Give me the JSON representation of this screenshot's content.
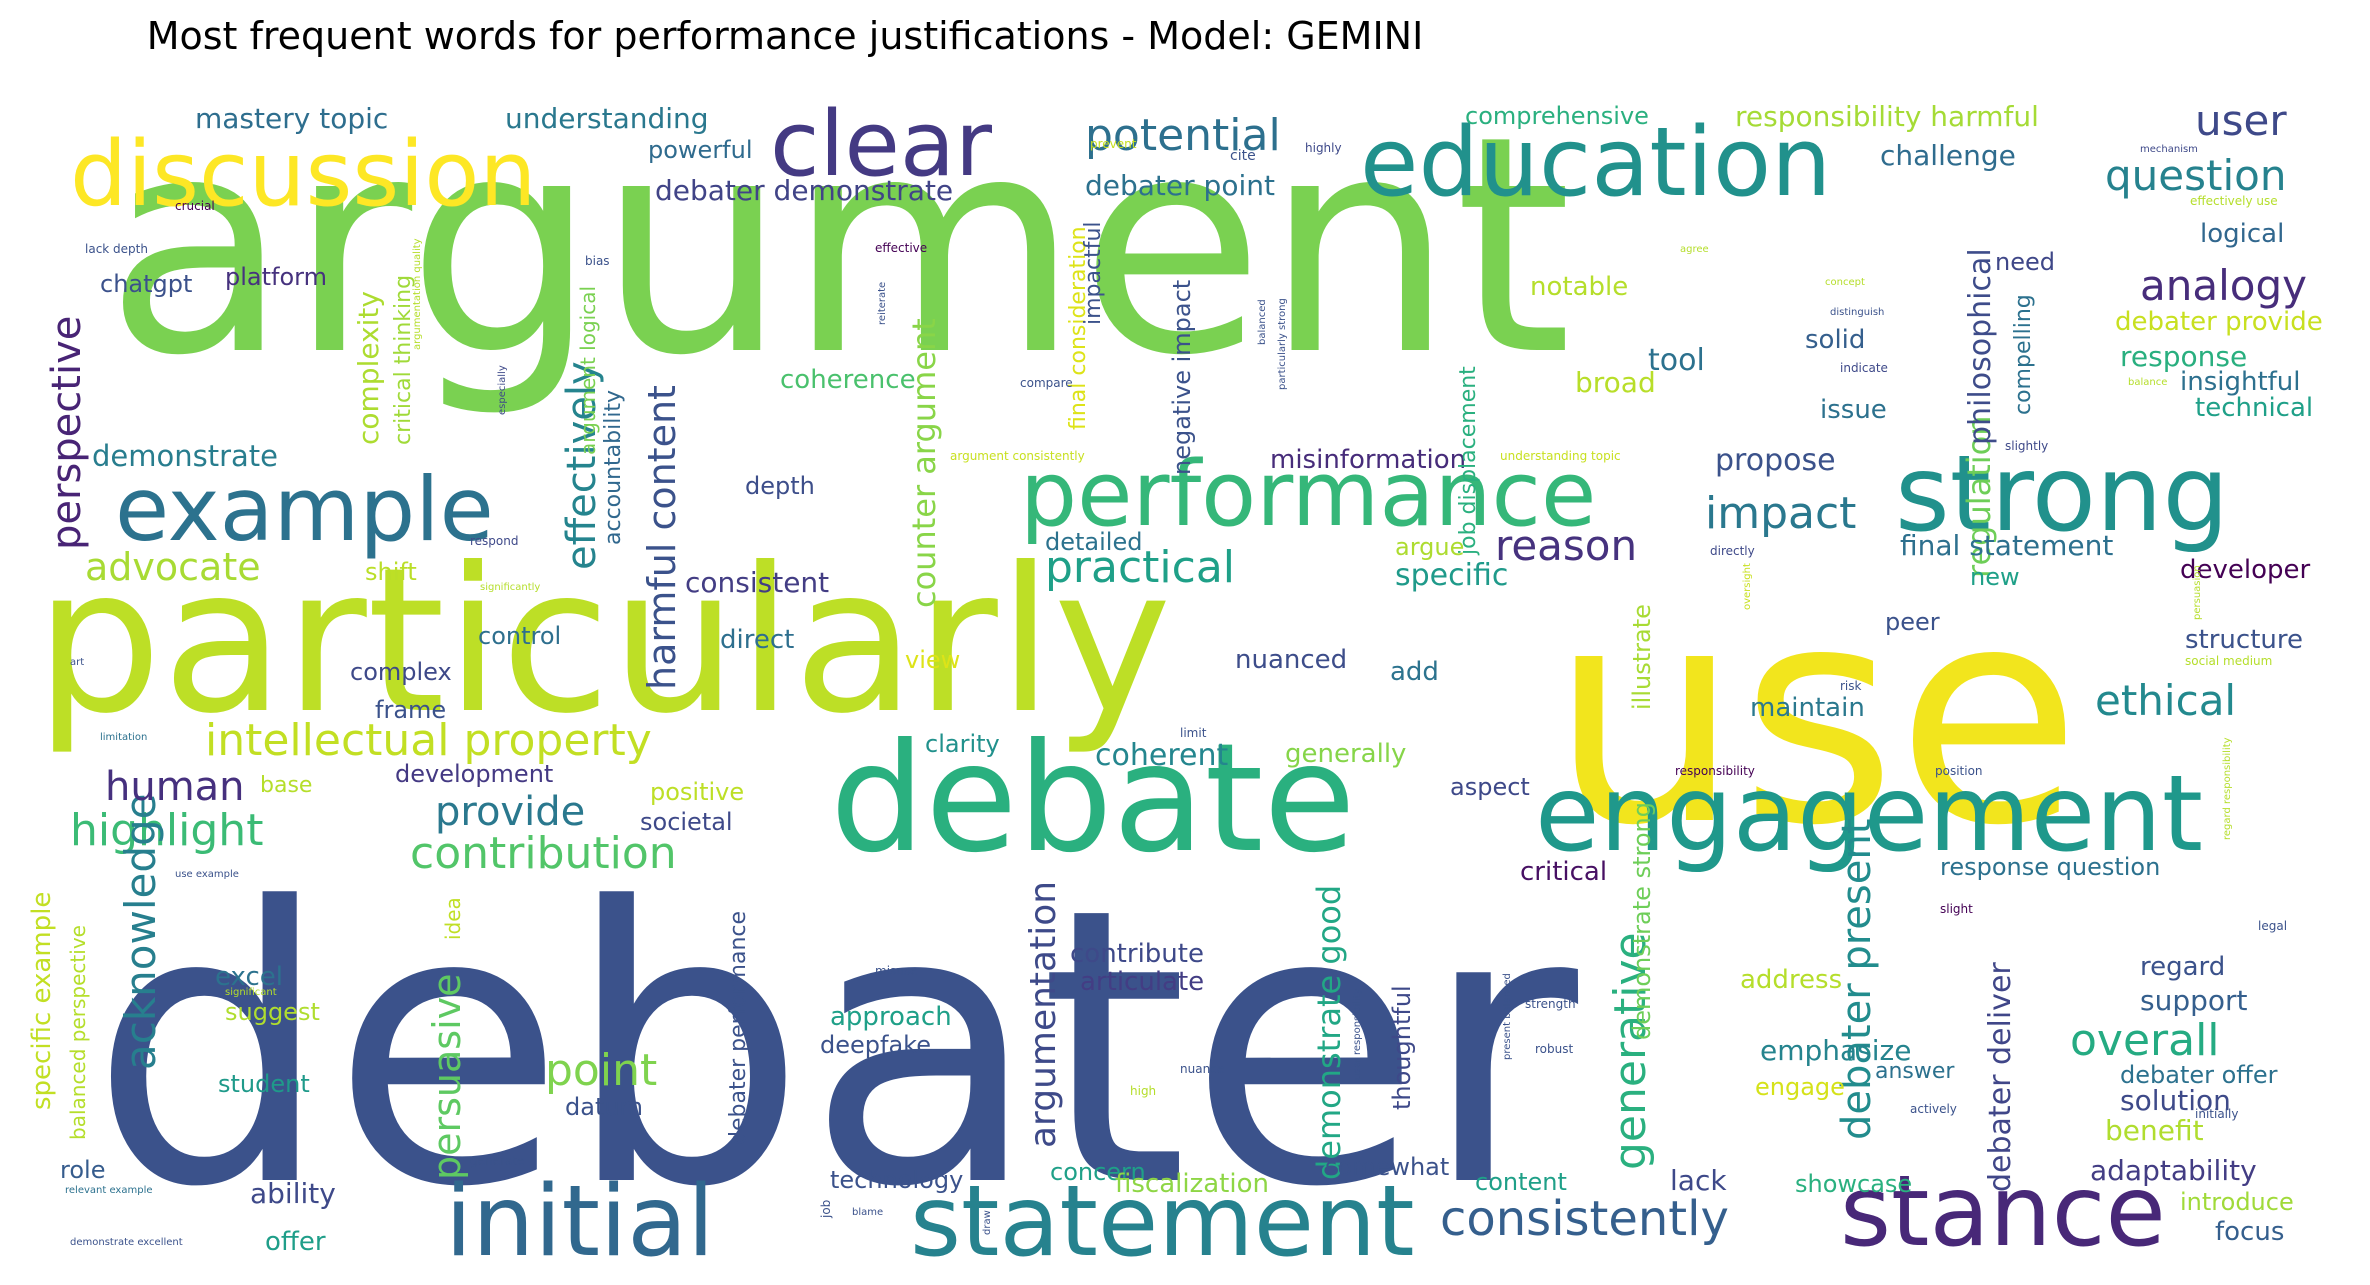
{
  "title": "Most frequent words for performance justifications - Model: GEMINI",
  "chart_data": {
    "type": "wordcloud",
    "title": "Most frequent words for performance justifications - Model: GEMINI",
    "colormap": "viridis",
    "words": [
      {
        "text": "argument",
        "weight": 1.0,
        "color": "#7ad151"
      },
      {
        "text": "debater",
        "weight": 1.0,
        "color": "#3b528b"
      },
      {
        "text": "use",
        "weight": 0.66,
        "color": "#f2e51d"
      },
      {
        "text": "particularly",
        "weight": 0.55,
        "color": "#bddf26"
      },
      {
        "text": "debate",
        "weight": 0.4,
        "color": "#2ab07f"
      },
      {
        "text": "strong",
        "weight": 0.3,
        "color": "#21918c"
      },
      {
        "text": "engagement",
        "weight": 0.3,
        "color": "#1f988b"
      },
      {
        "text": "stance",
        "weight": 0.26,
        "color": "#482878"
      },
      {
        "text": "statement",
        "weight": 0.26,
        "color": "#26828e"
      },
      {
        "text": "initial",
        "weight": 0.26,
        "color": "#31688e"
      },
      {
        "text": "education",
        "weight": 0.26,
        "color": "#21918c"
      },
      {
        "text": "performance",
        "weight": 0.26,
        "color": "#35b779"
      },
      {
        "text": "discussion",
        "weight": 0.24,
        "color": "#fde725"
      },
      {
        "text": "clear",
        "weight": 0.24,
        "color": "#443a83"
      },
      {
        "text": "example",
        "weight": 0.24,
        "color": "#2c728e"
      },
      {
        "text": "consistently",
        "weight": 0.1,
        "color": "#355f8d"
      },
      {
        "text": "intellectual property",
        "weight": 0.1,
        "color": "#c2df23"
      },
      {
        "text": "contribution",
        "weight": 0.1,
        "color": "#52c569"
      },
      {
        "text": "highlight",
        "weight": 0.1,
        "color": "#3bbb75"
      },
      {
        "text": "acknowledge",
        "weight": 0.1,
        "color": "#277f8e"
      },
      {
        "text": "persuasive",
        "weight": 0.1,
        "color": "#5ec962"
      },
      {
        "text": "generative",
        "weight": 0.1,
        "color": "#2ab07f"
      },
      {
        "text": "argumentation",
        "weight": 0.1,
        "color": "#3e4a89"
      },
      {
        "text": "debater present",
        "weight": 0.1,
        "color": "#228c8d"
      },
      {
        "text": "harmful content",
        "weight": 0.1,
        "color": "#3b528b"
      },
      {
        "text": "effectively",
        "weight": 0.1,
        "color": "#25848e"
      },
      {
        "text": "perspective",
        "weight": 0.1,
        "color": "#482475"
      },
      {
        "text": "counter argument",
        "weight": 0.1,
        "color": "#89d548"
      },
      {
        "text": "potential",
        "weight": 0.1,
        "color": "#2d708e"
      },
      {
        "text": "practical",
        "weight": 0.1,
        "color": "#1fa088"
      },
      {
        "text": "impact",
        "weight": 0.1,
        "color": "#2a788e"
      },
      {
        "text": "reason",
        "weight": 0.1,
        "color": "#46327e"
      },
      {
        "text": "analogy",
        "weight": 0.1,
        "color": "#472d7b"
      },
      {
        "text": "question",
        "weight": 0.1,
        "color": "#26828e"
      },
      {
        "text": "user",
        "weight": 0.1,
        "color": "#3e4989"
      },
      {
        "text": "ethical",
        "weight": 0.1,
        "color": "#23898e"
      },
      {
        "text": "overall",
        "weight": 0.1,
        "color": "#25ab82"
      },
      {
        "text": "provide",
        "weight": 0.1,
        "color": "#2a788e"
      },
      {
        "text": "human",
        "weight": 0.1,
        "color": "#46307e"
      },
      {
        "text": "point",
        "weight": 0.1,
        "color": "#7fd34e"
      },
      {
        "text": "advocate",
        "weight": 0.1,
        "color": "#a8db34"
      },
      {
        "text": "regulation",
        "weight": 0.1,
        "color": "#6ece58"
      },
      {
        "text": "philosophical",
        "weight": 0.1,
        "color": "#3e4c8a"
      },
      {
        "text": "debater deliver",
        "weight": 0.1,
        "color": "#404688"
      },
      {
        "text": "demonstrate good",
        "weight": 0.1,
        "color": "#22a785"
      },
      {
        "text": "demonstrate",
        "weight": 0.08,
        "color": "#287d8e"
      },
      {
        "text": "complexity",
        "weight": 0.08,
        "color": "#addc30"
      },
      {
        "text": "mastery topic",
        "weight": 0.08,
        "color": "#2e6e8e"
      },
      {
        "text": "understanding",
        "weight": 0.08,
        "color": "#2a788e"
      },
      {
        "text": "debater demonstrate",
        "weight": 0.08,
        "color": "#414487"
      },
      {
        "text": "debater point",
        "weight": 0.08,
        "color": "#2c718e"
      },
      {
        "text": "responsibility harmful",
        "weight": 0.08,
        "color": "#a5db36"
      },
      {
        "text": "challenge",
        "weight": 0.08,
        "color": "#2f6c8e"
      },
      {
        "text": "logical",
        "weight": 0.07,
        "color": "#31678e"
      },
      {
        "text": "debater provide",
        "weight": 0.07,
        "color": "#c8e020"
      },
      {
        "text": "response",
        "weight": 0.07,
        "color": "#29af7f"
      },
      {
        "text": "insightful",
        "weight": 0.07,
        "color": "#2d708e"
      },
      {
        "text": "technical",
        "weight": 0.07,
        "color": "#1fa088"
      },
      {
        "text": "propose",
        "weight": 0.07,
        "color": "#3b528b"
      },
      {
        "text": "final statement",
        "weight": 0.07,
        "color": "#2d708e"
      },
      {
        "text": "specific",
        "weight": 0.07,
        "color": "#1f9a8a"
      },
      {
        "text": "consistent",
        "weight": 0.07,
        "color": "#433d84"
      },
      {
        "text": "coherent",
        "weight": 0.07,
        "color": "#24868e"
      },
      {
        "text": "generally",
        "weight": 0.07,
        "color": "#86d549"
      },
      {
        "text": "misinformation",
        "weight": 0.07,
        "color": "#472c7a"
      },
      {
        "text": "maintain",
        "weight": 0.07,
        "color": "#2a788e"
      },
      {
        "text": "developer",
        "weight": 0.07,
        "color": "#440154"
      },
      {
        "text": "structure",
        "weight": 0.07,
        "color": "#3b528b"
      },
      {
        "text": "tool",
        "weight": 0.07,
        "color": "#2c718e"
      },
      {
        "text": "broad",
        "weight": 0.07,
        "color": "#b8de29"
      },
      {
        "text": "notable",
        "weight": 0.07,
        "color": "#b5de2b"
      },
      {
        "text": "solid",
        "weight": 0.07,
        "color": "#355f8d"
      },
      {
        "text": "issue",
        "weight": 0.07,
        "color": "#2c718e"
      },
      {
        "text": "need",
        "weight": 0.07,
        "color": "#3f4788"
      },
      {
        "text": "powerful",
        "weight": 0.06,
        "color": "#2f6b8e"
      },
      {
        "text": "comprehensive",
        "weight": 0.06,
        "color": "#2ab07f"
      },
      {
        "text": "platform",
        "weight": 0.06,
        "color": "#46327e"
      },
      {
        "text": "chatgpt",
        "weight": 0.06,
        "color": "#3b518b"
      },
      {
        "text": "coherence",
        "weight": 0.06,
        "color": "#4ac16d"
      },
      {
        "text": "depth",
        "weight": 0.06,
        "color": "#3d4e8a"
      },
      {
        "text": "control",
        "weight": 0.06,
        "color": "#2e6f8e"
      },
      {
        "text": "direct",
        "weight": 0.06,
        "color": "#2e6f8e"
      },
      {
        "text": "complex",
        "weight": 0.06,
        "color": "#3e4989"
      },
      {
        "text": "frame",
        "weight": 0.06,
        "color": "#3b528b"
      },
      {
        "text": "nuanced",
        "weight": 0.06,
        "color": "#3d4d8a"
      },
      {
        "text": "add",
        "weight": 0.06,
        "color": "#2c738e"
      },
      {
        "text": "shift",
        "weight": 0.06,
        "color": "#bade28"
      },
      {
        "text": "detailed",
        "weight": 0.06,
        "color": "#2c728e"
      },
      {
        "text": "argue",
        "weight": 0.06,
        "color": "#addc30"
      },
      {
        "text": "peer",
        "weight": 0.06,
        "color": "#3b528b"
      },
      {
        "text": "new",
        "weight": 0.06,
        "color": "#1fa088"
      },
      {
        "text": "clarity",
        "weight": 0.06,
        "color": "#21918c"
      },
      {
        "text": "view",
        "weight": 0.06,
        "color": "#dde318"
      },
      {
        "text": "development",
        "weight": 0.06,
        "color": "#443983"
      },
      {
        "text": "positive",
        "weight": 0.06,
        "color": "#bddf26"
      },
      {
        "text": "societal",
        "weight": 0.06,
        "color": "#3e4989"
      },
      {
        "text": "aspect",
        "weight": 0.06,
        "color": "#3e4989"
      },
      {
        "text": "base",
        "weight": 0.06,
        "color": "#b5de2b"
      },
      {
        "text": "critical",
        "weight": 0.06,
        "color": "#471063"
      },
      {
        "text": "response question",
        "weight": 0.06,
        "color": "#2c718e"
      },
      {
        "text": "regard",
        "weight": 0.06,
        "color": "#3b528b"
      },
      {
        "text": "support",
        "weight": 0.06,
        "color": "#355f8d"
      },
      {
        "text": "address",
        "weight": 0.06,
        "color": "#b5de2b"
      },
      {
        "text": "emphasize",
        "weight": 0.06,
        "color": "#25848e"
      },
      {
        "text": "solution",
        "weight": 0.06,
        "color": "#3e4a89"
      },
      {
        "text": "benefit",
        "weight": 0.06,
        "color": "#b0dd2f"
      },
      {
        "text": "answer",
        "weight": 0.06,
        "color": "#2c718e"
      },
      {
        "text": "debater offer",
        "weight": 0.06,
        "color": "#2c718e"
      },
      {
        "text": "engage",
        "weight": 0.06,
        "color": "#d5e21a"
      },
      {
        "text": "contribute",
        "weight": 0.06,
        "color": "#3e4989"
      },
      {
        "text": "articulate",
        "weight": 0.06,
        "color": "#433d84"
      },
      {
        "text": "approach",
        "weight": 0.06,
        "color": "#1fa088"
      },
      {
        "text": "deepfake",
        "weight": 0.06,
        "color": "#3b528b"
      },
      {
        "text": "datum",
        "weight": 0.06,
        "color": "#3b528b"
      },
      {
        "text": "excel",
        "weight": 0.06,
        "color": "#2c728e"
      },
      {
        "text": "suggest",
        "weight": 0.06,
        "color": "#b0dd2f"
      },
      {
        "text": "student",
        "weight": 0.06,
        "color": "#1f9a8a"
      },
      {
        "text": "role",
        "weight": 0.06,
        "color": "#365c8d"
      },
      {
        "text": "ability",
        "weight": 0.06,
        "color": "#3e4989"
      },
      {
        "text": "offer",
        "weight": 0.06,
        "color": "#1f9e89"
      },
      {
        "text": "technology",
        "weight": 0.06,
        "color": "#3b528b"
      },
      {
        "text": "concern",
        "weight": 0.06,
        "color": "#1fa088"
      },
      {
        "text": "fiscalization",
        "weight": 0.06,
        "color": "#8ed645"
      },
      {
        "text": "somewhat",
        "weight": 0.06,
        "color": "#3b528b"
      },
      {
        "text": "content",
        "weight": 0.06,
        "color": "#1fa088"
      },
      {
        "text": "lack",
        "weight": 0.06,
        "color": "#3e4989"
      },
      {
        "text": "showcase",
        "weight": 0.06,
        "color": "#2ab07f"
      },
      {
        "text": "adaptability",
        "weight": 0.06,
        "color": "#433d84"
      },
      {
        "text": "introduce",
        "weight": 0.06,
        "color": "#a0da39"
      },
      {
        "text": "focus",
        "weight": 0.06,
        "color": "#355f8d"
      },
      {
        "text": "specific example",
        "weight": 0.06,
        "color": "#c2df23"
      },
      {
        "text": "balanced perspective",
        "weight": 0.05,
        "color": "#b5de2b"
      },
      {
        "text": "idea",
        "weight": 0.05,
        "color": "#c0df25"
      },
      {
        "text": "debater performance",
        "weight": 0.05,
        "color": "#3b528b"
      },
      {
        "text": "thoughtful",
        "weight": 0.05,
        "color": "#3e4989"
      },
      {
        "text": "illustrate",
        "weight": 0.05,
        "color": "#a8db34"
      },
      {
        "text": "demonstrate strong",
        "weight": 0.05,
        "color": "#6ece58"
      },
      {
        "text": "critical thinking",
        "weight": 0.05,
        "color": "#a0da39"
      },
      {
        "text": "argument logical",
        "weight": 0.05,
        "color": "#7ad151"
      },
      {
        "text": "accountability",
        "weight": 0.05,
        "color": "#31688e"
      },
      {
        "text": "final consideration",
        "weight": 0.05,
        "color": "#dde318"
      },
      {
        "text": "impactful",
        "weight": 0.05,
        "color": "#3b528b"
      },
      {
        "text": "negative impact",
        "weight": 0.05,
        "color": "#3b528b"
      },
      {
        "text": "job displacement",
        "weight": 0.05,
        "color": "#2ab07f"
      },
      {
        "text": "compelling",
        "weight": 0.05,
        "color": "#2c718e"
      },
      {
        "text": "prevent",
        "weight": 0.02,
        "color": "#c8e020"
      },
      {
        "text": "cite",
        "weight": 0.02,
        "color": "#3b528b"
      },
      {
        "text": "highly",
        "weight": 0.02,
        "color": "#3e4989"
      },
      {
        "text": "mechanism",
        "weight": 0.02,
        "color": "#3e4989"
      },
      {
        "text": "effectively use",
        "weight": 0.02,
        "color": "#b5de2b"
      },
      {
        "text": "crucial",
        "weight": 0.02,
        "color": "#440154"
      },
      {
        "text": "lack depth",
        "weight": 0.02,
        "color": "#3b528b"
      },
      {
        "text": "argumentation quality",
        "weight": 0.02,
        "color": "#b5de2b"
      },
      {
        "text": "bias",
        "weight": 0.02,
        "color": "#3b528b"
      },
      {
        "text": "effective",
        "weight": 0.02,
        "color": "#440154"
      },
      {
        "text": "reiterate",
        "weight": 0.02,
        "color": "#3b528b"
      },
      {
        "text": "especially",
        "weight": 0.02,
        "color": "#3e4989"
      },
      {
        "text": "compare",
        "weight": 0.02,
        "color": "#3b528b"
      },
      {
        "text": "particularly strong",
        "weight": 0.02,
        "color": "#3b528b"
      },
      {
        "text": "balanced",
        "weight": 0.02,
        "color": "#3b528b"
      },
      {
        "text": "agree",
        "weight": 0.02,
        "color": "#b5de2b"
      },
      {
        "text": "concept",
        "weight": 0.02,
        "color": "#b5de2b"
      },
      {
        "text": "distinguish",
        "weight": 0.02,
        "color": "#3b528b"
      },
      {
        "text": "indicate",
        "weight": 0.02,
        "color": "#3e4989"
      },
      {
        "text": "balance",
        "weight": 0.02,
        "color": "#b5de2b"
      },
      {
        "text": "slightly",
        "weight": 0.02,
        "color": "#3e4989"
      },
      {
        "text": "argument consistently",
        "weight": 0.02,
        "color": "#c8e020"
      },
      {
        "text": "understanding topic",
        "weight": 0.02,
        "color": "#c8e020"
      },
      {
        "text": "respond",
        "weight": 0.02,
        "color": "#3e4989"
      },
      {
        "text": "significantly",
        "weight": 0.02,
        "color": "#b5de2b"
      },
      {
        "text": "directly",
        "weight": 0.02,
        "color": "#3e4989"
      },
      {
        "text": "oversight",
        "weight": 0.02,
        "color": "#c8e020"
      },
      {
        "text": "persuasion",
        "weight": 0.02,
        "color": "#b5de2b"
      },
      {
        "text": "social medium",
        "weight": 0.02,
        "color": "#b5de2b"
      },
      {
        "text": "art",
        "weight": 0.02,
        "color": "#3b528b"
      },
      {
        "text": "risk",
        "weight": 0.02,
        "color": "#3b528b"
      },
      {
        "text": "limit",
        "weight": 0.02,
        "color": "#3b528b"
      },
      {
        "text": "limitation",
        "weight": 0.02,
        "color": "#2c718e"
      },
      {
        "text": "responsibility",
        "weight": 0.02,
        "color": "#440154"
      },
      {
        "text": "position",
        "weight": 0.02,
        "color": "#3b528b"
      },
      {
        "text": "regard responsibility",
        "weight": 0.02,
        "color": "#b5de2b"
      },
      {
        "text": "use example",
        "weight": 0.02,
        "color": "#3b528b"
      },
      {
        "text": "significant",
        "weight": 0.02,
        "color": "#b5de2b"
      },
      {
        "text": "misuse",
        "weight": 0.02,
        "color": "#3b528b"
      },
      {
        "text": "strength",
        "weight": 0.02,
        "color": "#3b528b"
      },
      {
        "text": "slight",
        "weight": 0.02,
        "color": "#440154"
      },
      {
        "text": "legal",
        "weight": 0.02,
        "color": "#3b528b"
      },
      {
        "text": "present balanced",
        "weight": 0.02,
        "color": "#3b528b"
      },
      {
        "text": "user responsibility",
        "weight": 0.02,
        "color": "#3b528b"
      },
      {
        "text": "robust",
        "weight": 0.02,
        "color": "#3b528b"
      },
      {
        "text": "nuance",
        "weight": 0.02,
        "color": "#3b528b"
      },
      {
        "text": "high",
        "weight": 0.02,
        "color": "#b5de2b"
      },
      {
        "text": "actively",
        "weight": 0.02,
        "color": "#3b528b"
      },
      {
        "text": "initially",
        "weight": 0.02,
        "color": "#3b528b"
      },
      {
        "text": "generate",
        "weight": 0.02,
        "color": "#3b528b"
      },
      {
        "text": "relevant example",
        "weight": 0.02,
        "color": "#2c718e"
      },
      {
        "text": "job",
        "weight": 0.02,
        "color": "#3b528b"
      },
      {
        "text": "blame",
        "weight": 0.02,
        "color": "#3b528b"
      },
      {
        "text": "draw",
        "weight": 0.02,
        "color": "#3b528b"
      },
      {
        "text": "demonstrate excellent",
        "weight": 0.02,
        "color": "#3b528b"
      }
    ]
  }
}
